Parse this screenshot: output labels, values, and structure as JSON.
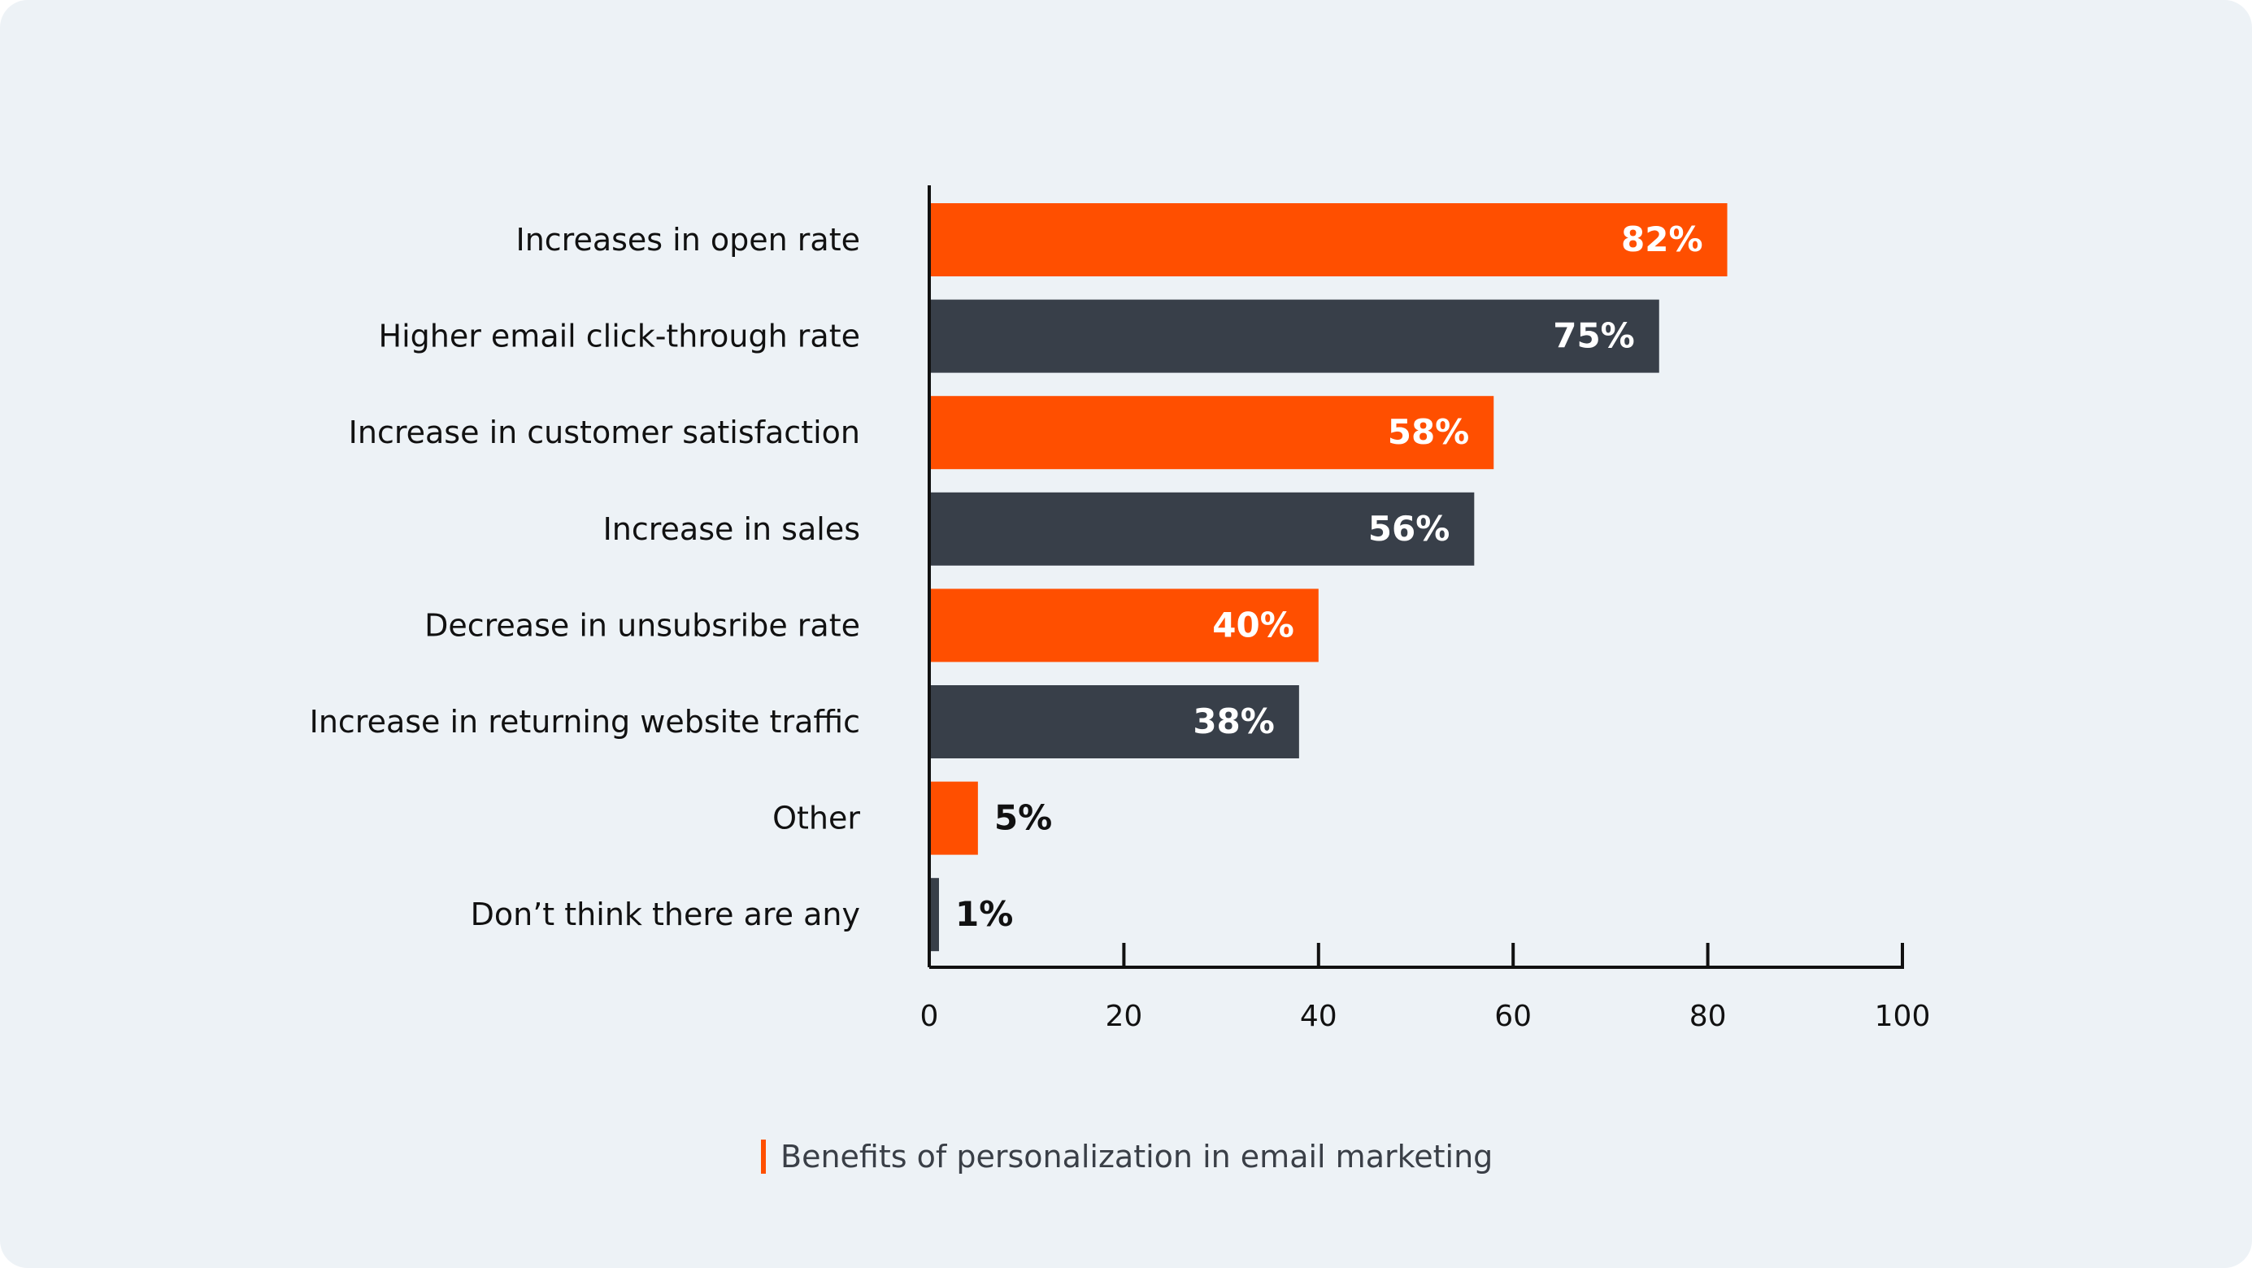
{
  "chart_data": {
    "type": "bar",
    "orientation": "horizontal",
    "categories": [
      "Increases in open rate",
      "Higher email click-through rate",
      "Increase in customer satisfaction",
      "Increase in sales",
      "Decrease in unsubsribe rate",
      "Increase in returning website traffic",
      "Other",
      "Don’t think there are any"
    ],
    "values": [
      82,
      75,
      58,
      56,
      40,
      38,
      5,
      1
    ],
    "value_labels": [
      "82%",
      "75%",
      "58%",
      "56%",
      "40%",
      "38%",
      "5%",
      "1%"
    ],
    "bar_colors": [
      "#ff4f00",
      "#383f49",
      "#ff4f00",
      "#383f49",
      "#ff4f00",
      "#383f49",
      "#ff4f00",
      "#383f49"
    ],
    "xlim": [
      0,
      100
    ],
    "xticks": [
      0,
      20,
      40,
      60,
      80,
      100
    ],
    "grid": false,
    "legend": {
      "position": "bottom-center",
      "entries": [
        {
          "label": "Benefits of personalization in email marketing",
          "color": "#ff4f00"
        }
      ]
    }
  },
  "colors": {
    "background": "#edf2f6",
    "accent": "#ff4f00",
    "dark": "#383f49",
    "axis": "#111111"
  }
}
